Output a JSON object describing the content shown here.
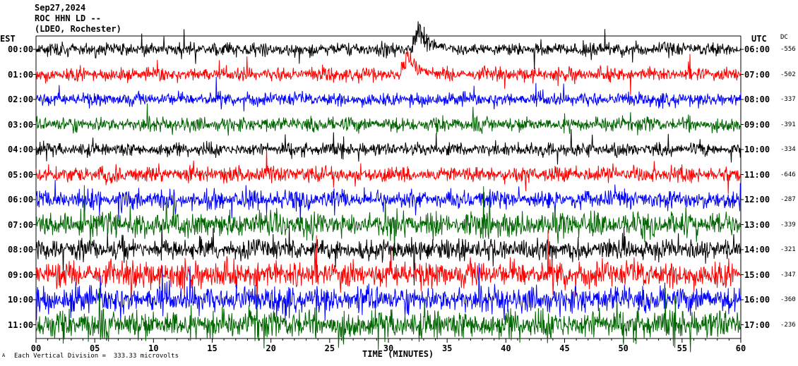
{
  "header": {
    "date": "Sep27,2024",
    "station": "ROC HHN LD --",
    "network": "(LDEO, Rochester)"
  },
  "axis_left_title": "EST",
  "axis_right_title": "UTC",
  "dc_title": "DC",
  "x_axis_title": "TIME (MINUTES)",
  "footer_note": "Each Vertical Division =  333.33 microvolts",
  "footer_glyph": "A",
  "colors": {
    "trace_cycle": [
      "#000000",
      "#ff0000",
      "#0000ff",
      "#006400"
    ],
    "background": "#ffffff"
  },
  "chart_data": {
    "type": "line",
    "title": "",
    "xlabel": "TIME (MINUTES)",
    "xlim": [
      0,
      60
    ],
    "x_ticks": [
      "00",
      "05",
      "10",
      "15",
      "20",
      "25",
      "30",
      "35",
      "40",
      "45",
      "50",
      "55",
      "60"
    ],
    "rows": [
      {
        "est": "00:00",
        "utc": "06:00",
        "dc": "-556",
        "color": "#000000",
        "amp": 10
      },
      {
        "est": "01:00",
        "utc": "07:00",
        "dc": "-502",
        "color": "#ff0000",
        "amp": 10
      },
      {
        "est": "02:00",
        "utc": "08:00",
        "dc": "-337",
        "color": "#0000ff",
        "amp": 10
      },
      {
        "est": "03:00",
        "utc": "09:00",
        "dc": "-391",
        "color": "#006400",
        "amp": 11
      },
      {
        "est": "04:00",
        "utc": "10:00",
        "dc": "-334",
        "color": "#000000",
        "amp": 10
      },
      {
        "est": "05:00",
        "utc": "11:00",
        "dc": "-646",
        "color": "#ff0000",
        "amp": 12
      },
      {
        "est": "06:00",
        "utc": "12:00",
        "dc": "-287",
        "color": "#0000ff",
        "amp": 14
      },
      {
        "est": "07:00",
        "utc": "13:00",
        "dc": "-339",
        "color": "#006400",
        "amp": 18
      },
      {
        "est": "08:00",
        "utc": "14:00",
        "dc": "-321",
        "color": "#000000",
        "amp": 16
      },
      {
        "est": "09:00",
        "utc": "15:00",
        "dc": "-347",
        "color": "#ff0000",
        "amp": 20
      },
      {
        "est": "10:00",
        "utc": "16:00",
        "dc": "-360",
        "color": "#0000ff",
        "amp": 20
      },
      {
        "est": "11:00",
        "utc": "17:00",
        "dc": "-236",
        "color": "#006400",
        "amp": 22
      }
    ],
    "events": [
      {
        "row": 0,
        "minute": 32.5,
        "note": "large spike"
      },
      {
        "row": 1,
        "minute": 31.5,
        "note": "spike"
      }
    ]
  }
}
